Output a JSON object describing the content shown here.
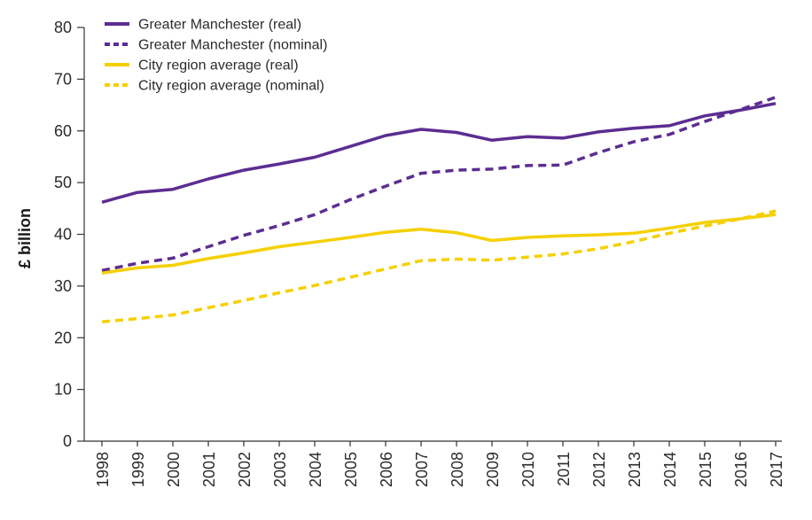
{
  "chart_data": {
    "type": "line",
    "title": "",
    "xlabel": "",
    "ylabel": "£ billion",
    "ylim": [
      0,
      80
    ],
    "yticks": [
      0,
      10,
      20,
      30,
      40,
      50,
      60,
      70,
      80
    ],
    "grid": false,
    "legend_position": "top-left",
    "categories": [
      "1998",
      "1999",
      "2000",
      "2001",
      "2002",
      "2003",
      "2004",
      "2005",
      "2006",
      "2007",
      "2008",
      "2009",
      "2010",
      "2011",
      "2012",
      "2013",
      "2014",
      "2015",
      "2016",
      "2017"
    ],
    "series": [
      {
        "name": "Greater Manchester (real)",
        "color": "#5c2d91",
        "style": "solid",
        "values": [
          46.2,
          48.1,
          48.7,
          50.7,
          52.4,
          53.6,
          54.9,
          57.0,
          59.1,
          60.3,
          59.7,
          58.2,
          58.9,
          58.6,
          59.8,
          60.5,
          61.0,
          62.9,
          64.0,
          65.3
        ]
      },
      {
        "name": "Greater Manchester (nominal)",
        "color": "#5c2d91",
        "style": "dashed",
        "values": [
          33.0,
          34.4,
          35.4,
          37.6,
          39.8,
          41.7,
          43.8,
          46.7,
          49.3,
          51.8,
          52.4,
          52.6,
          53.3,
          53.4,
          55.8,
          57.9,
          59.3,
          61.8,
          64.1,
          66.5
        ]
      },
      {
        "name": "City region average (real)",
        "color": "#f5d000",
        "style": "solid",
        "values": [
          32.5,
          33.5,
          34.0,
          35.3,
          36.4,
          37.6,
          38.5,
          39.4,
          40.4,
          41.0,
          40.3,
          38.8,
          39.4,
          39.7,
          39.9,
          40.2,
          41.2,
          42.3,
          43.0,
          43.8
        ]
      },
      {
        "name": "City region average (nominal)",
        "color": "#f5d000",
        "style": "dashed",
        "values": [
          23.1,
          23.7,
          24.4,
          25.8,
          27.2,
          28.7,
          30.1,
          31.7,
          33.3,
          34.9,
          35.2,
          35.0,
          35.6,
          36.2,
          37.2,
          38.6,
          40.2,
          41.6,
          43.0,
          44.5
        ]
      }
    ]
  }
}
